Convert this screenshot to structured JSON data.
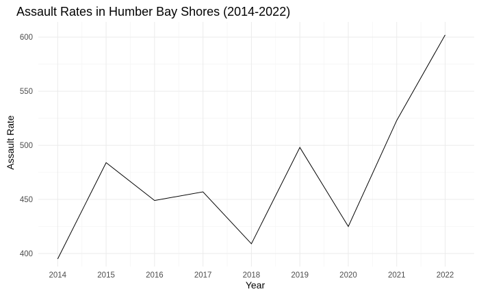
{
  "chart_data": {
    "type": "line",
    "title": "Assault Rates in Humber Bay Shores (2014-2022)",
    "xlabel": "Year",
    "ylabel": "Assault Rate",
    "x": [
      2014,
      2015,
      2016,
      2017,
      2018,
      2019,
      2020,
      2021,
      2022
    ],
    "series": [
      {
        "values": [
          395,
          484,
          449,
          457,
          409,
          498,
          425,
          523,
          602
        ]
      }
    ],
    "x_ticks": [
      "2014",
      "2015",
      "2016",
      "2017",
      "2018",
      "2019",
      "2020",
      "2021",
      "2022"
    ],
    "y_ticks": [
      400,
      450,
      500,
      550,
      600
    ],
    "xlim": [
      2013.6,
      2022.6
    ],
    "ylim": [
      388,
      614
    ],
    "grid": true,
    "legend": "none",
    "line_color": "#000000",
    "grid_color": "#ebebeb",
    "tick_label_color": "#4d4d4d"
  }
}
